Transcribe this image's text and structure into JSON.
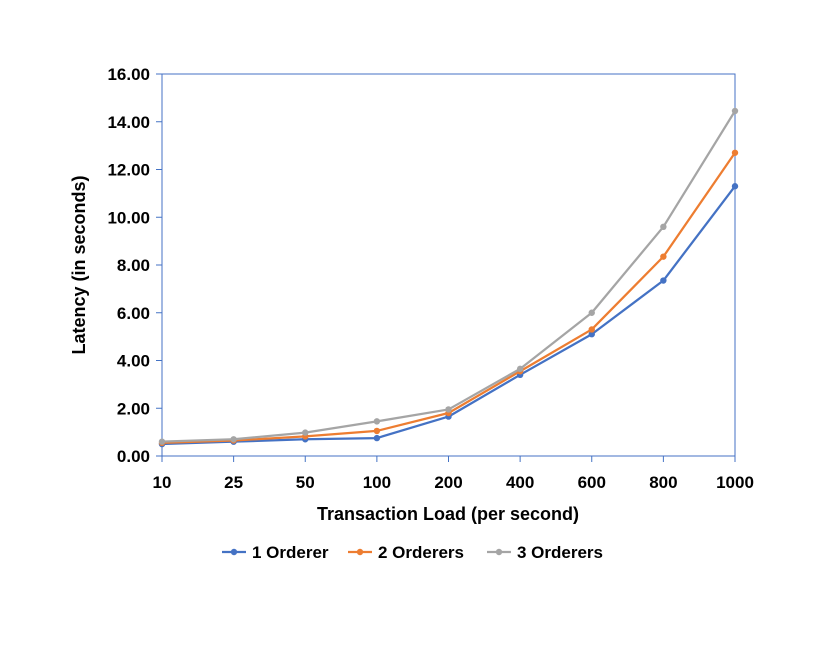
{
  "chart_data": {
    "type": "line",
    "title": "",
    "xlabel": "Transaction Load (per second)",
    "ylabel": "Latency (in seconds)",
    "categories": [
      "10",
      "25",
      "50",
      "100",
      "200",
      "400",
      "600",
      "800",
      "1000"
    ],
    "ylim": [
      0,
      16
    ],
    "yticks": [
      "0.00",
      "2.00",
      "4.00",
      "6.00",
      "8.00",
      "10.00",
      "12.00",
      "14.00",
      "16.00"
    ],
    "grid": false,
    "legend_position": "bottom",
    "series": [
      {
        "name": "1 Orderer",
        "color": "#4472C4",
        "values": [
          0.5,
          0.6,
          0.7,
          0.75,
          1.65,
          3.4,
          5.1,
          7.35,
          11.3
        ]
      },
      {
        "name": "2 Orderers",
        "color": "#ED7D31",
        "values": [
          0.55,
          0.65,
          0.82,
          1.05,
          1.8,
          3.55,
          5.3,
          8.35,
          12.7
        ]
      },
      {
        "name": "3 Orderers",
        "color": "#A5A5A5",
        "values": [
          0.6,
          0.7,
          0.98,
          1.45,
          1.95,
          3.65,
          6.0,
          9.6,
          14.45
        ]
      }
    ]
  }
}
